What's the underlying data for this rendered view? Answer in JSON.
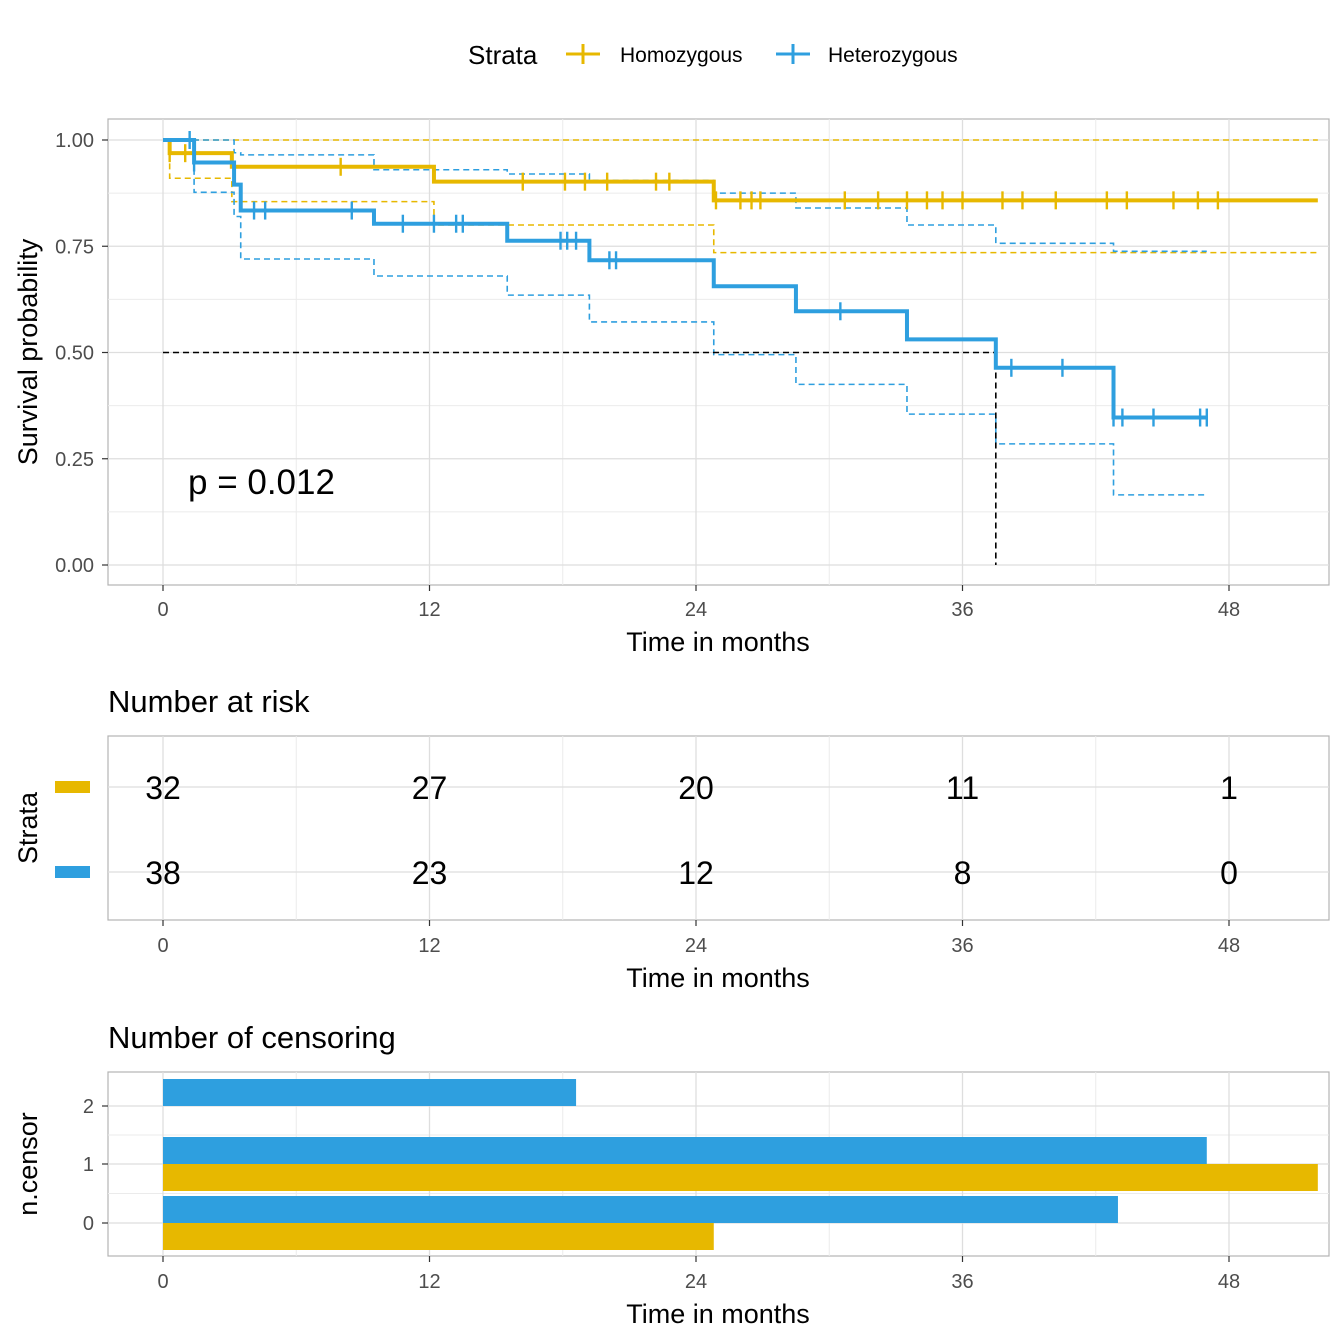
{
  "legend": {
    "title": "Strata",
    "items": [
      {
        "label": "Homozygous",
        "color": "#E7B800"
      },
      {
        "label": "Heterozygous",
        "color": "#2E9FDF"
      }
    ]
  },
  "chart_data": [
    {
      "type": "line",
      "subtype": "kaplan-meier step",
      "xlabel": "Time in months",
      "ylabel": "Survival probability",
      "xlim": [
        -4,
        52
      ],
      "ylim": [
        -0.05,
        1.05
      ],
      "xticks": [
        0,
        12,
        24,
        36,
        48
      ],
      "yticks": [
        0,
        0.25,
        0.5,
        0.75,
        1.0
      ],
      "ytick_labels": [
        "0.00",
        "0.25",
        "0.50",
        "0.75",
        "1.00"
      ],
      "annotation": "p = 0.012",
      "median_time": 37.5,
      "grid": true,
      "series": [
        {
          "name": "Homozygous",
          "color": "#E7B800",
          "x": [
            0,
            0.3,
            1.3,
            3.1,
            12.2,
            24.8,
            52
          ],
          "y": [
            1.0,
            0.969,
            0.969,
            0.937,
            0.902,
            0.858,
            0.858
          ],
          "lower_x": [
            0,
            0.3,
            1.3,
            3.1,
            12.2,
            24.8,
            52
          ],
          "lower_y": [
            1.0,
            0.91,
            0.91,
            0.855,
            0.8,
            0.735,
            0.735
          ],
          "upper_x": [
            0,
            0.3,
            3.1,
            52
          ],
          "upper_y": [
            1.0,
            1.0,
            1.0,
            1.0
          ],
          "censor_x": [
            0.3,
            1.0,
            8.0,
            16.2,
            18.1,
            19.0,
            20.0,
            22.2,
            22.8,
            24.9,
            26.0,
            26.5,
            26.9,
            30.7,
            32.2,
            33.5,
            34.4,
            35.1,
            36.0,
            37.8,
            38.7,
            40.2,
            42.5,
            43.4,
            45.5,
            46.6,
            47.5
          ]
        },
        {
          "name": "Heterozygous",
          "color": "#2E9FDF",
          "x": [
            0,
            1.4,
            3.2,
            3.5,
            9.5,
            15.5,
            19.2,
            24.8,
            28.5,
            33.5,
            37.5,
            42.8,
            47.0
          ],
          "y": [
            1.0,
            0.947,
            0.895,
            0.834,
            0.803,
            0.763,
            0.717,
            0.656,
            0.597,
            0.531,
            0.464,
            0.347,
            0.347
          ],
          "lower_x": [
            0,
            1.4,
            3.2,
            3.5,
            9.5,
            15.5,
            19.2,
            24.8,
            28.5,
            33.5,
            37.5,
            42.8,
            47.0
          ],
          "lower_y": [
            1.0,
            0.877,
            0.82,
            0.72,
            0.68,
            0.635,
            0.572,
            0.495,
            0.425,
            0.355,
            0.285,
            0.165,
            0.165
          ],
          "upper_x": [
            0,
            1.4,
            3.2,
            3.5,
            9.5,
            15.5,
            19.2,
            24.8,
            28.5,
            33.5,
            37.5,
            42.8,
            47.0
          ],
          "upper_y": [
            1.0,
            1.0,
            0.97,
            0.965,
            0.93,
            0.92,
            0.905,
            0.875,
            0.84,
            0.8,
            0.757,
            0.738,
            0.738
          ],
          "censor_x": [
            1.2,
            1.4,
            4.1,
            4.6,
            8.5,
            10.8,
            12.2,
            13.2,
            13.5,
            17.9,
            18.2,
            18.6,
            20.1,
            20.4,
            30.5,
            38.2,
            40.5,
            42.8,
            43.2,
            44.6,
            46.7,
            47.0
          ]
        }
      ]
    },
    {
      "type": "table",
      "title": "Number at risk",
      "xlabel": "Time in months",
      "ylabel": "Strata",
      "xticks": [
        0,
        12,
        24,
        36,
        48
      ],
      "rows": [
        {
          "name": "Homozygous",
          "color": "#E7B800",
          "values": [
            "32",
            "27",
            "20",
            "11",
            "1"
          ]
        },
        {
          "name": "Heterozygous",
          "color": "#2E9FDF",
          "values": [
            "38",
            "23",
            "12",
            "8",
            "0"
          ]
        }
      ]
    },
    {
      "type": "bar",
      "orientation": "horizontal",
      "title": "Number of censoring",
      "xlabel": "Time in months",
      "ylabel": "n.censor",
      "xticks": [
        0,
        12,
        24,
        36,
        48
      ],
      "categories": [
        "0",
        "1",
        "2"
      ],
      "xlim": [
        -2.45,
        52
      ],
      "ylim": [
        -0.55,
        2.55
      ],
      "series": [
        {
          "name": "Homozygous",
          "color": "#E7B800",
          "values": [
            24.8,
            52,
            null
          ]
        },
        {
          "name": "Heterozygous",
          "color": "#2E9FDF",
          "values": [
            43.0,
            47.0,
            18.6
          ]
        }
      ]
    }
  ]
}
